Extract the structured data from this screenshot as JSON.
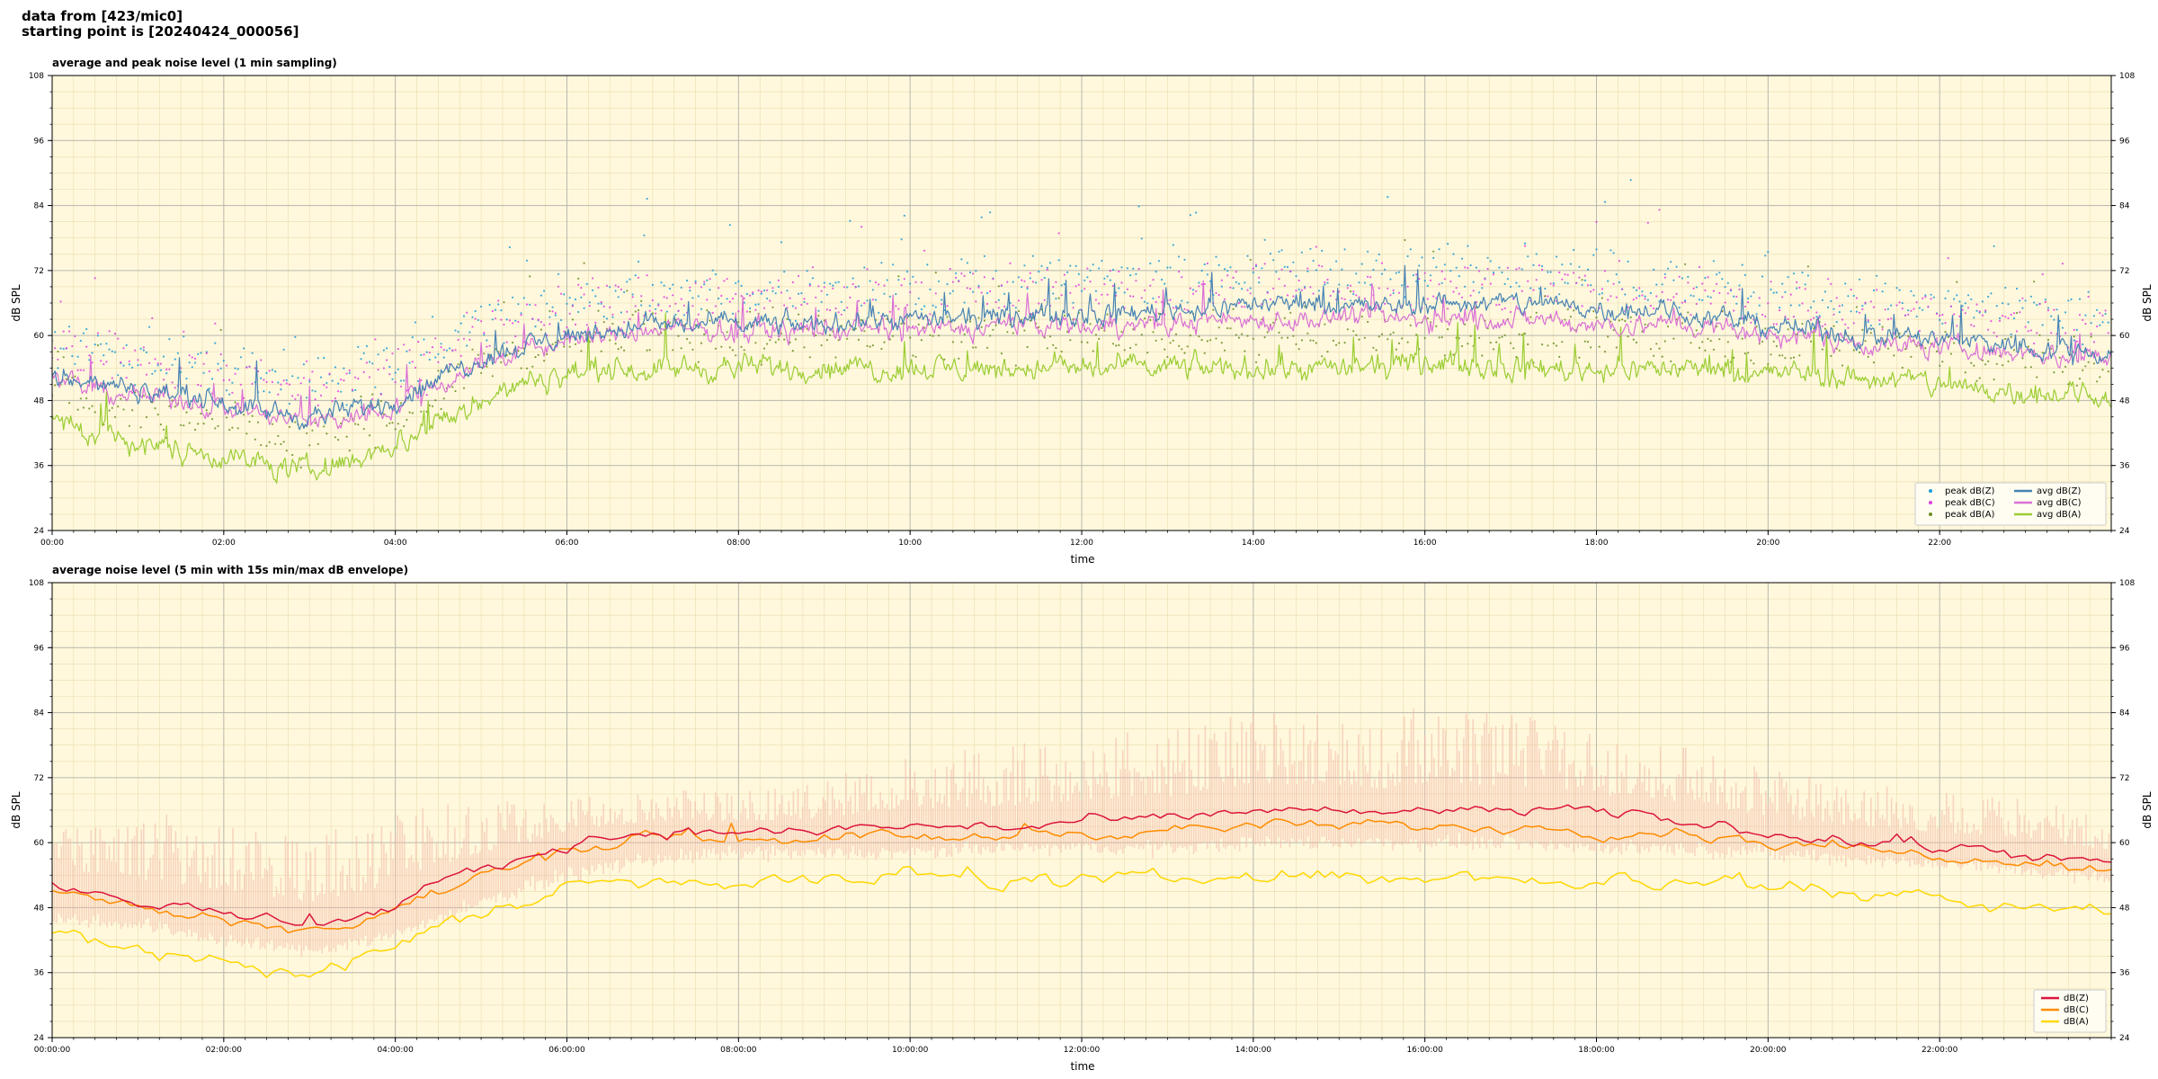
{
  "header": {
    "line1": "data from [423/mic0]",
    "line2": "starting point is [20240424_000056]"
  },
  "chart_data": [
    {
      "type": "line",
      "title": "average and peak noise level (1 min sampling)",
      "xlabel": "time",
      "ylabel": "dB SPL",
      "xlim_hours": [
        0,
        24
      ],
      "ylim": [
        24,
        108
      ],
      "yticks": [
        24,
        36,
        48,
        60,
        72,
        84,
        96,
        108
      ],
      "xtick_labels": [
        "00:00",
        "02:00",
        "04:00",
        "06:00",
        "08:00",
        "10:00",
        "12:00",
        "14:00",
        "16:00",
        "18:00",
        "20:00",
        "22:00"
      ],
      "grid": true,
      "legend_position": "lower-right",
      "colors": {
        "background": "#fff8dc",
        "peak_z": "#1f9bd6",
        "peak_c": "#e040e0",
        "peak_a": "#6b8e23",
        "avg_z": "#4682b4",
        "avg_c": "#da70d6",
        "avg_a": "#9acd32"
      },
      "legend": [
        {
          "label": "peak dB(Z)",
          "kind": "dot",
          "color": "#1f9bd6"
        },
        {
          "label": "peak dB(C)",
          "kind": "dot",
          "color": "#e040e0"
        },
        {
          "label": "peak dB(A)",
          "kind": "dot",
          "color": "#6b8e23"
        },
        {
          "label": "avg dB(Z)",
          "kind": "line",
          "color": "#4682b4"
        },
        {
          "label": "avg dB(C)",
          "kind": "line",
          "color": "#da70d6"
        },
        {
          "label": "avg dB(A)",
          "kind": "line",
          "color": "#9acd32"
        }
      ],
      "series": [
        {
          "name": "avg dB(Z)",
          "x_hours": [
            0,
            0.5,
            1,
            1.5,
            2,
            2.5,
            3,
            3.5,
            4,
            4.5,
            5,
            5.5,
            6,
            6.5,
            7,
            7.5,
            8,
            8.5,
            9,
            9.5,
            10,
            10.5,
            11,
            11.5,
            12,
            12.5,
            13,
            13.5,
            14,
            14.5,
            15,
            15.5,
            16,
            16.5,
            17,
            17.5,
            18,
            18.5,
            19,
            19.5,
            20,
            20.5,
            21,
            21.5,
            22,
            22.5,
            23,
            23.5,
            24
          ],
          "y": [
            53,
            51,
            50,
            49,
            48,
            46,
            45,
            46,
            48,
            52,
            56,
            58,
            60,
            61,
            62,
            62,
            62,
            62,
            62,
            63,
            63,
            63,
            63,
            64,
            64,
            64,
            65,
            65,
            66,
            66,
            66,
            65,
            66,
            66,
            66,
            66,
            65,
            65,
            64,
            63,
            62,
            61,
            60,
            60,
            59,
            59,
            58,
            57,
            57
          ]
        },
        {
          "name": "avg dB(C)",
          "x_hours": [
            0,
            0.5,
            1,
            1.5,
            2,
            2.5,
            3,
            3.5,
            4,
            4.5,
            5,
            5.5,
            6,
            6.5,
            7,
            7.5,
            8,
            8.5,
            9,
            9.5,
            10,
            10.5,
            11,
            11.5,
            12,
            12.5,
            13,
            13.5,
            14,
            14.5,
            15,
            15.5,
            16,
            16.5,
            17,
            17.5,
            18,
            18.5,
            19,
            19.5,
            20,
            20.5,
            21,
            21.5,
            22,
            22.5,
            23,
            23.5,
            24
          ],
          "y": [
            52,
            50,
            49,
            48,
            47,
            45,
            44,
            45,
            47,
            51,
            55,
            57,
            59,
            60,
            61,
            61,
            61,
            61,
            61,
            61,
            61,
            61,
            62,
            62,
            62,
            62,
            62,
            63,
            63,
            63,
            63,
            63,
            63,
            63,
            63,
            63,
            62,
            62,
            62,
            61,
            60,
            60,
            59,
            58,
            58,
            57,
            57,
            56,
            56
          ]
        },
        {
          "name": "avg dB(A)",
          "x_hours": [
            0,
            0.5,
            1,
            1.5,
            2,
            2.5,
            3,
            3.5,
            4,
            4.5,
            5,
            5.5,
            6,
            6.5,
            7,
            7.5,
            8,
            8.5,
            9,
            9.5,
            10,
            10.5,
            11,
            11.5,
            12,
            12.5,
            13,
            13.5,
            14,
            14.5,
            15,
            15.5,
            16,
            16.5,
            17,
            17.5,
            18,
            18.5,
            19,
            19.5,
            20,
            20.5,
            21,
            21.5,
            22,
            22.5,
            23,
            23.5,
            24
          ],
          "y": [
            44,
            42,
            40,
            39,
            38,
            36,
            35,
            37,
            40,
            44,
            48,
            51,
            53,
            54,
            54,
            54,
            54,
            54,
            54,
            54,
            54,
            54,
            54,
            54,
            54,
            54,
            54,
            54,
            54,
            54,
            54,
            54,
            55,
            55,
            54,
            54,
            54,
            54,
            54,
            54,
            53,
            53,
            52,
            52,
            51,
            50,
            50,
            49,
            49
          ]
        }
      ],
      "peak_offset_db": 6
    },
    {
      "type": "line",
      "title": "average noise level (5 min with 15s min/max dB envelope)",
      "xlabel": "time",
      "ylabel": "dB SPL",
      "xlim_hours": [
        0,
        24
      ],
      "ylim": [
        24,
        108
      ],
      "yticks": [
        24,
        36,
        48,
        60,
        72,
        84,
        96,
        108
      ],
      "xtick_labels": [
        "00:00:00",
        "02:00:00",
        "04:00:00",
        "06:00:00",
        "08:00:00",
        "10:00:00",
        "12:00:00",
        "14:00:00",
        "16:00:00",
        "18:00:00",
        "20:00:00",
        "22:00:00"
      ],
      "grid": true,
      "legend_position": "lower-right",
      "colors": {
        "background": "#fff8dc",
        "envelope": "#f4b8a8",
        "dbz": "#dc143c",
        "dbc": "#ff8c00",
        "dba": "#ffd700"
      },
      "legend": [
        {
          "label": "dB(Z)",
          "kind": "line",
          "color": "#dc143c"
        },
        {
          "label": "dB(C)",
          "kind": "line",
          "color": "#ff8c00"
        },
        {
          "label": "dB(A)",
          "kind": "line",
          "color": "#ffd700"
        }
      ],
      "series": [
        {
          "name": "dB(Z)",
          "x_hours": [
            0,
            0.5,
            1,
            1.5,
            2,
            2.5,
            3,
            3.5,
            4,
            4.5,
            5,
            5.5,
            6,
            6.5,
            7,
            7.5,
            8,
            8.5,
            9,
            9.5,
            10,
            10.5,
            11,
            11.5,
            12,
            12.5,
            13,
            13.5,
            14,
            14.5,
            15,
            15.5,
            16,
            16.5,
            17,
            17.5,
            18,
            18.5,
            19,
            19.5,
            20,
            20.5,
            21,
            21.5,
            22,
            22.5,
            23,
            23.5,
            24
          ],
          "y": [
            52,
            51,
            49,
            48,
            47,
            46,
            45,
            46,
            48,
            52,
            55,
            57,
            60,
            61,
            62,
            62,
            62,
            62,
            62,
            63,
            63,
            63,
            63,
            63,
            64,
            64,
            64,
            65,
            66,
            66,
            66,
            65,
            66,
            66,
            66,
            66,
            65,
            65,
            64,
            63,
            62,
            61,
            60,
            60,
            59,
            59,
            58,
            57,
            56
          ]
        },
        {
          "name": "dB(C)",
          "x_hours": [
            0,
            0.5,
            1,
            1.5,
            2,
            2.5,
            3,
            3.5,
            4,
            4.5,
            5,
            5.5,
            6,
            6.5,
            7,
            7.5,
            8,
            8.5,
            9,
            9.5,
            10,
            10.5,
            11,
            11.5,
            12,
            12.5,
            13,
            13.5,
            14,
            14.5,
            15,
            15.5,
            16,
            16.5,
            17,
            17.5,
            18,
            18.5,
            19,
            19.5,
            20,
            20.5,
            21,
            21.5,
            22,
            22.5,
            23,
            23.5,
            24
          ],
          "y": [
            51,
            50,
            48,
            47,
            46,
            45,
            44,
            45,
            47,
            51,
            54,
            56,
            59,
            60,
            61,
            61,
            61,
            61,
            61,
            61,
            61,
            61,
            61,
            62,
            62,
            62,
            62,
            63,
            63,
            63,
            63,
            63,
            63,
            63,
            63,
            63,
            62,
            62,
            62,
            61,
            60,
            60,
            59,
            58,
            58,
            57,
            57,
            56,
            55
          ]
        },
        {
          "name": "dB(A)",
          "x_hours": [
            0,
            0.5,
            1,
            1.5,
            2,
            2.5,
            3,
            3.5,
            4,
            4.5,
            5,
            5.5,
            6,
            6.5,
            7,
            7.5,
            8,
            8.5,
            9,
            9.5,
            10,
            10.5,
            11,
            11.5,
            12,
            12.5,
            13,
            13.5,
            14,
            14.5,
            15,
            15.5,
            16,
            16.5,
            17,
            17.5,
            18,
            18.5,
            19,
            19.5,
            20,
            20.5,
            21,
            21.5,
            22,
            22.5,
            23,
            23.5,
            24
          ],
          "y": [
            44,
            42,
            40,
            39,
            38,
            37,
            36,
            38,
            41,
            44,
            47,
            49,
            52,
            53,
            53,
            53,
            53,
            54,
            53,
            53,
            54,
            54,
            53,
            53,
            53,
            53,
            53,
            54,
            54,
            54,
            54,
            53,
            54,
            54,
            53,
            53,
            53,
            53,
            53,
            53,
            52,
            52,
            51,
            51,
            50,
            49,
            49,
            48,
            48
          ]
        }
      ],
      "envelope": {
        "name": "min/max envelope",
        "x_hours": [
          0,
          1,
          2,
          3,
          4,
          5,
          6,
          7,
          8,
          9,
          10,
          11,
          12,
          13,
          14,
          15,
          16,
          17,
          18,
          19,
          20,
          21,
          22,
          23,
          24
        ],
        "y_min": [
          46,
          45,
          42,
          40,
          43,
          49,
          54,
          57,
          58,
          58,
          58,
          59,
          59,
          59,
          60,
          60,
          60,
          60,
          59,
          59,
          58,
          57,
          56,
          55,
          53
        ],
        "y_max": [
          64,
          66,
          64,
          61,
          66,
          68,
          68,
          70,
          70,
          72,
          76,
          78,
          80,
          82,
          84,
          84,
          86,
          84,
          80,
          78,
          74,
          72,
          70,
          68,
          66
        ]
      }
    }
  ]
}
